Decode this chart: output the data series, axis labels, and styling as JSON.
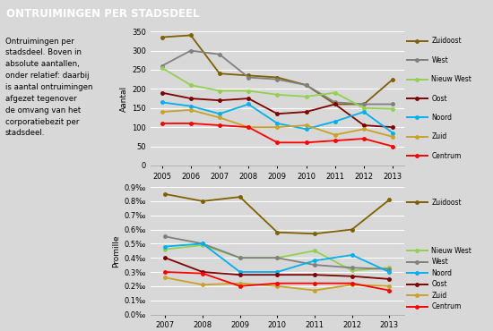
{
  "title": "ONTRUIMINGEN PER STADSDEEL",
  "title_bg": "#c0392b",
  "description_lines": [
    "Ontruimingen per",
    "stadsdeel. Boven in",
    "absolute aantallen,",
    "onder relatief: daarbij",
    "is aantal ontruimingen",
    "afgezet tegenover",
    "de omvang van het",
    "corporatiebezit per",
    "stadsdeel."
  ],
  "top_chart": {
    "ylabel": "Aantal",
    "years": [
      2005,
      2006,
      2007,
      2008,
      2009,
      2010,
      2011,
      2012,
      2013
    ],
    "ylim": [
      0,
      350
    ],
    "yticks": [
      0,
      50,
      100,
      150,
      200,
      250,
      300,
      350
    ],
    "series": {
      "Zuidoost": {
        "color": "#7f6000",
        "values": [
          335,
          340,
          240,
          235,
          230,
          210,
          160,
          160,
          225
        ]
      },
      "West": {
        "color": "#808080",
        "values": [
          260,
          300,
          290,
          230,
          225,
          210,
          165,
          160,
          160
        ]
      },
      "Nieuw West": {
        "color": "#92d050",
        "values": [
          255,
          210,
          195,
          195,
          185,
          180,
          190,
          150,
          148
        ]
      },
      "Oost": {
        "color": "#7f0000",
        "values": [
          190,
          175,
          170,
          175,
          135,
          140,
          160,
          105,
          100
        ]
      },
      "Noord": {
        "color": "#00b0f0",
        "values": [
          165,
          155,
          135,
          160,
          110,
          95,
          115,
          140,
          85
        ]
      },
      "Zuid": {
        "color": "#c9a227",
        "values": [
          140,
          145,
          125,
          100,
          100,
          105,
          80,
          95,
          75
        ]
      },
      "Centrum": {
        "color": "#ff0000",
        "values": [
          110,
          110,
          105,
          100,
          60,
          60,
          65,
          70,
          50
        ]
      }
    }
  },
  "bottom_chart": {
    "ylabel": "Promille",
    "years": [
      2007,
      2008,
      2009,
      2010,
      2011,
      2012,
      2013
    ],
    "ylim": [
      0.0,
      0.9
    ],
    "yticks": [
      0.0,
      0.1,
      0.2,
      0.3,
      0.4,
      0.5,
      0.6,
      0.7,
      0.8,
      0.9
    ],
    "series": {
      "Zuidoost": {
        "color": "#7f6000",
        "values": [
          0.85,
          0.8,
          0.83,
          0.58,
          0.57,
          0.6,
          0.81
        ]
      },
      "Nieuw West": {
        "color": "#92d050",
        "values": [
          0.46,
          0.49,
          0.4,
          0.4,
          0.45,
          0.31,
          0.33
        ]
      },
      "West": {
        "color": "#808080",
        "values": [
          0.55,
          0.5,
          0.4,
          0.4,
          0.35,
          0.33,
          0.32
        ]
      },
      "Noord": {
        "color": "#00b0f0",
        "values": [
          0.48,
          0.5,
          0.3,
          0.3,
          0.38,
          0.42,
          0.3
        ]
      },
      "Oost": {
        "color": "#7f0000",
        "values": [
          0.4,
          0.3,
          0.28,
          0.28,
          0.28,
          0.27,
          0.25
        ]
      },
      "Zuid": {
        "color": "#c9a227",
        "values": [
          0.26,
          0.21,
          0.22,
          0.2,
          0.17,
          0.21,
          0.2
        ]
      },
      "Centrum": {
        "color": "#ff0000",
        "values": [
          0.3,
          0.29,
          0.2,
          0.22,
          0.22,
          0.22,
          0.17
        ]
      }
    }
  },
  "bg_color": "#d8d8d8",
  "plot_bg": "#d8d8d8",
  "grid_color": "#ffffff",
  "line_width": 1.3,
  "marker_size": 2.5
}
